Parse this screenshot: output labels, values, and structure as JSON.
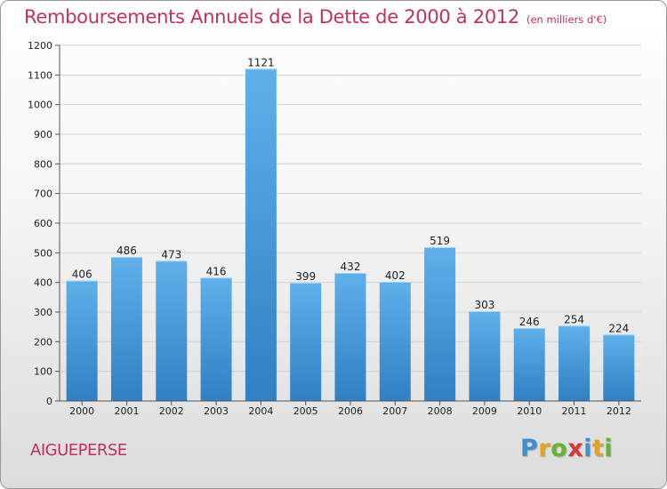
{
  "header": {
    "title": "Remboursements Annuels de la Dette de 2000 à 2012",
    "unit": "(en milliers d'€)"
  },
  "footer": {
    "commune": "AIGUEPERSE",
    "logo": "Proxiti",
    "logo_letters": [
      {
        "char": "P",
        "color": "#3f8fd1"
      },
      {
        "char": "r",
        "color": "#e8a21e"
      },
      {
        "char": "o",
        "color": "#66b52f"
      },
      {
        "char": "x",
        "color": "#d8382f"
      },
      {
        "char": "i",
        "color": "#3f8fd1"
      },
      {
        "char": "t",
        "color": "#e8a21e"
      },
      {
        "char": "i",
        "color": "#66b52f"
      }
    ]
  },
  "colors": {
    "title": "#c4305e",
    "bar_light": "#5fb0ea",
    "bar_dark": "#2f80c4",
    "grid": "#d4d4d4"
  },
  "chart_data": {
    "type": "bar",
    "title": "Remboursements Annuels de la Dette de 2000 à 2012",
    "subtitle": "(en milliers d'€)",
    "xlabel": "",
    "ylabel": "",
    "categories": [
      "2000",
      "2001",
      "2002",
      "2003",
      "2004",
      "2005",
      "2006",
      "2007",
      "2008",
      "2009",
      "2010",
      "2011",
      "2012"
    ],
    "values": [
      406,
      486,
      473,
      416,
      1121,
      399,
      432,
      402,
      519,
      303,
      246,
      254,
      224
    ],
    "ylim": [
      0,
      1200
    ],
    "yticks": [
      0,
      100,
      200,
      300,
      400,
      500,
      600,
      700,
      800,
      900,
      1000,
      1100,
      1200
    ],
    "grid": true
  }
}
